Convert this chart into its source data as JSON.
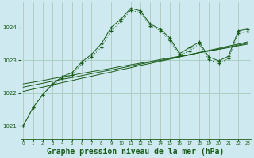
{
  "title": "Graphe pression niveau de la mer (hPa)",
  "bg_color": "#cfe9f0",
  "grid_color": "#a8cfc0",
  "line_color": "#1a5c1a",
  "x_ticks": [
    0,
    1,
    2,
    3,
    4,
    5,
    6,
    7,
    8,
    9,
    10,
    11,
    12,
    13,
    14,
    15,
    16,
    17,
    18,
    19,
    20,
    21,
    22,
    23
  ],
  "y_ticks": [
    1021,
    1022,
    1023,
    1024
  ],
  "ylim": [
    1020.6,
    1024.75
  ],
  "xlim": [
    -0.3,
    23.3
  ],
  "line1_y": [
    1021.0,
    1021.55,
    1021.95,
    1022.25,
    1022.45,
    1022.55,
    1022.9,
    1023.1,
    1023.4,
    1023.9,
    1024.18,
    1024.52,
    1024.45,
    1024.05,
    1023.9,
    1023.6,
    1023.15,
    1023.28,
    1023.5,
    1023.02,
    1022.9,
    1023.05,
    1023.82,
    1023.88
  ],
  "line2_y": [
    1021.0,
    1021.55,
    1021.95,
    1022.28,
    1022.5,
    1022.62,
    1022.95,
    1023.18,
    1023.5,
    1024.0,
    1024.25,
    1024.58,
    1024.5,
    1024.1,
    1023.95,
    1023.68,
    1023.2,
    1023.38,
    1023.55,
    1023.1,
    1022.98,
    1023.12,
    1023.9,
    1023.95
  ],
  "line3_y": [
    1022.05,
    1022.12,
    1022.18,
    1022.25,
    1022.32,
    1022.38,
    1022.45,
    1022.51,
    1022.58,
    1022.64,
    1022.71,
    1022.77,
    1022.84,
    1022.9,
    1022.97,
    1023.03,
    1023.1,
    1023.16,
    1023.23,
    1023.3,
    1023.36,
    1023.43,
    1023.49,
    1023.56
  ],
  "line4_y": [
    1022.18,
    1022.24,
    1022.3,
    1022.36,
    1022.42,
    1022.47,
    1022.53,
    1022.59,
    1022.65,
    1022.7,
    1022.76,
    1022.82,
    1022.88,
    1022.94,
    1022.99,
    1023.05,
    1023.11,
    1023.17,
    1023.23,
    1023.28,
    1023.34,
    1023.4,
    1023.46,
    1023.52
  ],
  "line5_y": [
    1022.28,
    1022.33,
    1022.38,
    1022.44,
    1022.49,
    1022.54,
    1022.6,
    1022.65,
    1022.7,
    1022.75,
    1022.81,
    1022.86,
    1022.91,
    1022.96,
    1023.02,
    1023.07,
    1023.12,
    1023.17,
    1023.23,
    1023.28,
    1023.33,
    1023.38,
    1023.44,
    1023.49
  ],
  "title_fontsize": 7,
  "tick_fontsize": 5,
  "xtick_fontsize": 4
}
